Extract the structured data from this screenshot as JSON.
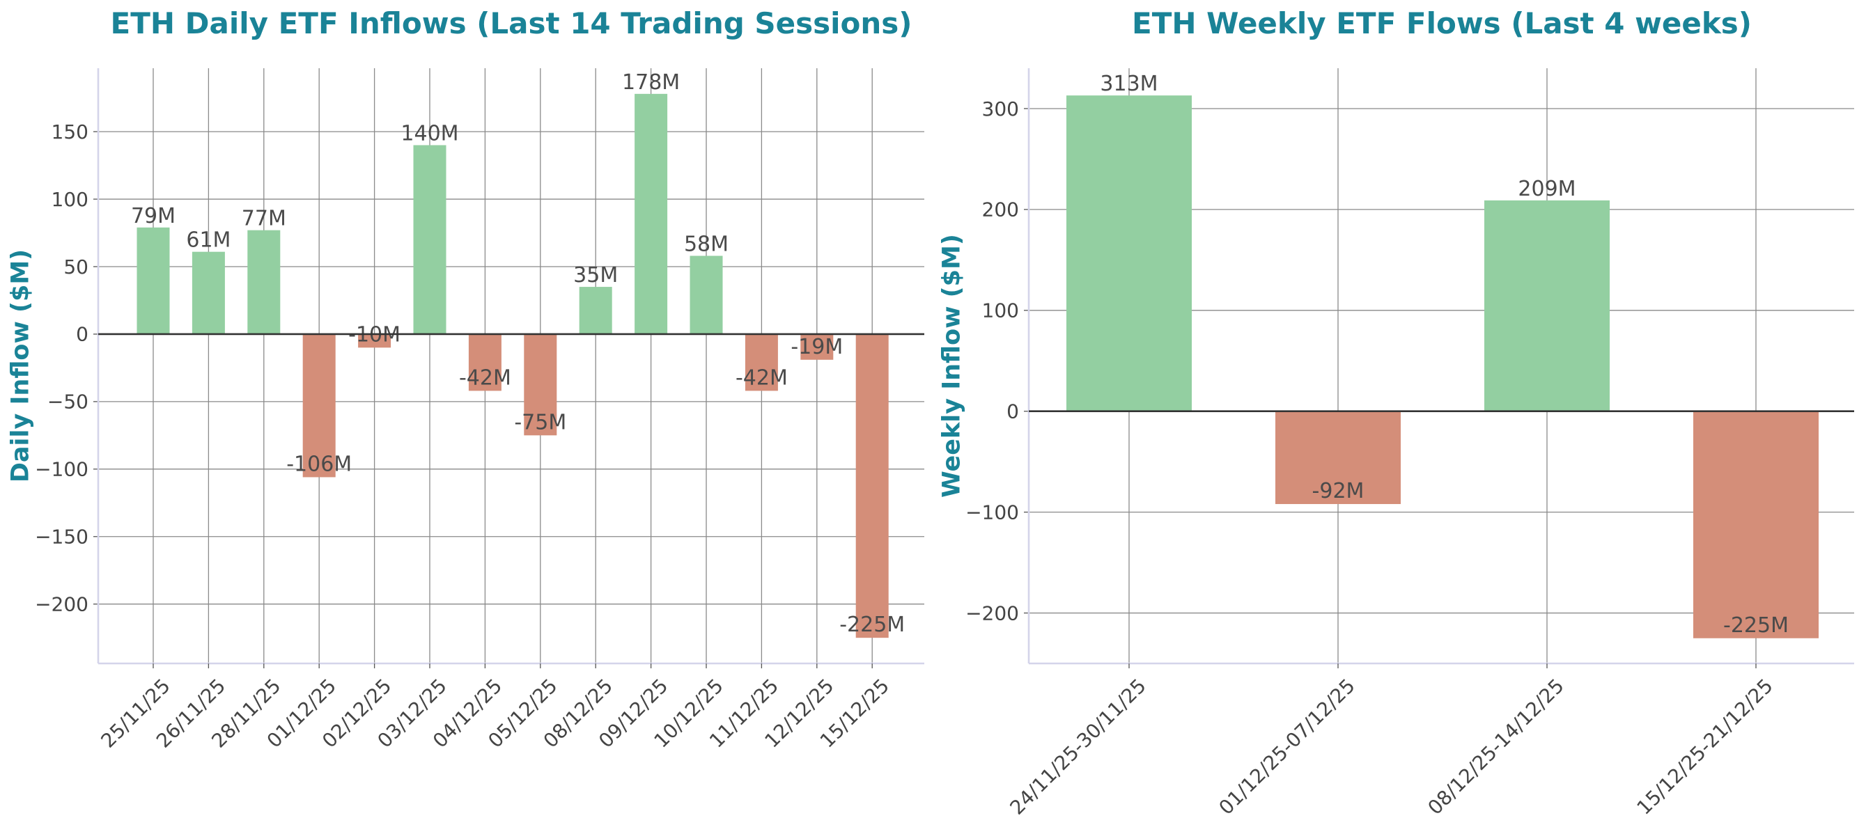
{
  "chart_data": [
    {
      "type": "bar",
      "title": "ETH Daily ETF Inflows (Last 14 Trading Sessions)",
      "xlabel": "",
      "ylabel": "Daily Inflow ($M)",
      "categories": [
        "25/11/25",
        "26/11/25",
        "28/11/25",
        "01/12/25",
        "02/12/25",
        "03/12/25",
        "04/12/25",
        "05/12/25",
        "08/12/25",
        "09/12/25",
        "10/12/25",
        "11/12/25",
        "12/12/25",
        "15/12/25"
      ],
      "values": [
        79,
        61,
        77,
        -106,
        -10,
        140,
        -42,
        -75,
        35,
        178,
        58,
        -42,
        -19,
        -225
      ],
      "data_labels": [
        "79M",
        "61M",
        "77M",
        "-106M",
        "-10M",
        "140M",
        "-42M",
        "-75M",
        "35M",
        "178M",
        "58M",
        "-42M",
        "-19M",
        "-225M"
      ],
      "yticks": [
        150,
        100,
        50,
        0,
        -50,
        -100,
        -150,
        -200
      ],
      "ytick_labels": [
        "150",
        "100",
        "50",
        "0",
        "−50",
        "−100",
        "−150",
        "−200"
      ],
      "ylim": [
        -244,
        197
      ],
      "grid": true,
      "legend": "none",
      "colors": {
        "positive": "#93cfa1",
        "negative": "#d48e79"
      }
    },
    {
      "type": "bar",
      "title": "ETH Weekly ETF Flows (Last 4 weeks)",
      "xlabel": "",
      "ylabel": "Weekly Inflow ($M)",
      "categories": [
        "24/11/25-30/11/25",
        "01/12/25-07/12/25",
        "08/12/25-14/12/25",
        "15/12/25-21/12/25"
      ],
      "values": [
        313,
        -92,
        209,
        -225
      ],
      "data_labels": [
        "313M",
        "-92M",
        "209M",
        "-225M"
      ],
      "yticks": [
        300,
        200,
        100,
        0,
        -100,
        -200
      ],
      "ytick_labels": [
        "300",
        "200",
        "100",
        "0",
        "−100",
        "−200"
      ],
      "ylim": [
        -250,
        340
      ],
      "grid": true,
      "legend": "none",
      "colors": {
        "positive": "#93cfa1",
        "negative": "#d48e79"
      }
    }
  ]
}
